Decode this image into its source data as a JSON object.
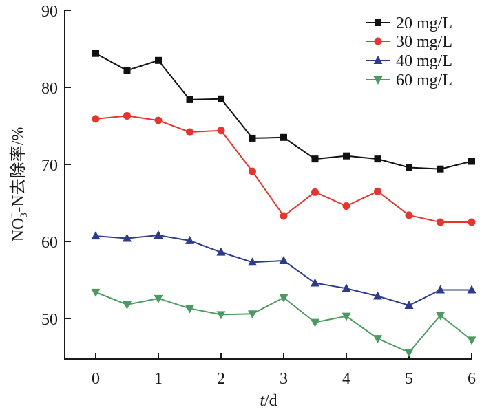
{
  "chart_data": {
    "type": "line",
    "title": "",
    "xlabel_italic": "t",
    "xlabel_rest": "/d",
    "ylabel_main": "NO",
    "ylabel_sub": "3",
    "ylabel_sup": "−",
    "ylabel_rest": "-N去除率/%",
    "xlim": [
      -0.5,
      6
    ],
    "ylim": [
      44.7,
      90
    ],
    "x_ticks": [
      0,
      1,
      2,
      3,
      4,
      5,
      6
    ],
    "x_tick_labels": [
      "0",
      "1",
      "2",
      "3",
      "4",
      "5",
      "6"
    ],
    "y_ticks": [
      50,
      60,
      70,
      80,
      90
    ],
    "y_tick_labels": [
      "50",
      "60",
      "70",
      "80",
      "90"
    ],
    "grid": false,
    "legend_position": "top-right",
    "x": [
      0,
      0.5,
      1,
      1.5,
      2,
      2.5,
      3,
      3.5,
      4,
      4.5,
      5,
      5.5,
      6
    ],
    "series": [
      {
        "name": "20 mg/L",
        "color": "#111111",
        "marker": "square",
        "values": [
          84.4,
          82.2,
          83.5,
          78.4,
          78.5,
          73.4,
          73.5,
          70.7,
          71.1,
          70.7,
          69.6,
          69.4,
          70.4
        ]
      },
      {
        "name": "30 mg/L",
        "color": "#e5352d",
        "marker": "circle",
        "values": [
          75.9,
          76.3,
          75.7,
          74.2,
          74.4,
          69.1,
          63.3,
          66.4,
          64.6,
          66.5,
          63.4,
          62.5,
          62.5
        ]
      },
      {
        "name": "40 mg/L",
        "color": "#2e3b8a",
        "marker": "triangle-up",
        "values": [
          60.7,
          60.4,
          60.8,
          60.1,
          58.6,
          57.3,
          57.5,
          54.6,
          53.9,
          52.9,
          51.7,
          53.7,
          53.7
        ]
      },
      {
        "name": "60 mg/L",
        "color": "#4c9a62",
        "marker": "triangle-down",
        "values": [
          53.4,
          51.8,
          52.6,
          51.3,
          50.5,
          50.6,
          52.7,
          49.5,
          50.3,
          47.4,
          45.6,
          50.4,
          47.2
        ]
      }
    ]
  }
}
